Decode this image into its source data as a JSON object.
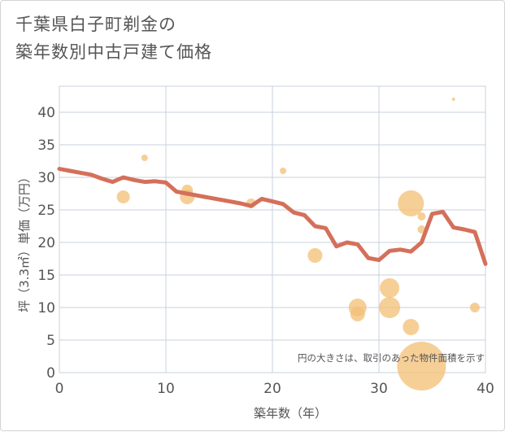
{
  "title": {
    "line1": "千葉県白子町剃金の",
    "line2": "築年数別中古戸建て価格"
  },
  "colors": {
    "bubble": "#f3bf74",
    "line": "#d4705a",
    "grid": "#c9d1dc",
    "text": "#555555"
  },
  "chart_data": {
    "type": "scatter",
    "xlabel": "築年数（年）",
    "ylabel": "坪（3.3㎡）単価（万円）",
    "xlim": [
      0,
      40
    ],
    "ylim": [
      0,
      44
    ],
    "xticks": [
      0,
      10,
      20,
      30,
      40
    ],
    "yticks": [
      0,
      5,
      10,
      15,
      20,
      25,
      30,
      35,
      40
    ],
    "note": "円の大きさは、取引のあった物件面積を示す",
    "bubbles": [
      {
        "x": 6,
        "y": 27,
        "size": 8
      },
      {
        "x": 8,
        "y": 33,
        "size": 4
      },
      {
        "x": 12,
        "y": 27,
        "size": 9
      },
      {
        "x": 12,
        "y": 28,
        "size": 7
      },
      {
        "x": 18,
        "y": 26,
        "size": 6
      },
      {
        "x": 21,
        "y": 31,
        "size": 4
      },
      {
        "x": 24,
        "y": 18,
        "size": 9
      },
      {
        "x": 28,
        "y": 10,
        "size": 11
      },
      {
        "x": 28,
        "y": 9,
        "size": 9
      },
      {
        "x": 31,
        "y": 13,
        "size": 12
      },
      {
        "x": 31,
        "y": 10,
        "size": 13
      },
      {
        "x": 33,
        "y": 26,
        "size": 16
      },
      {
        "x": 33,
        "y": 7,
        "size": 10
      },
      {
        "x": 34,
        "y": 24,
        "size": 5
      },
      {
        "x": 34,
        "y": 22,
        "size": 5
      },
      {
        "x": 34,
        "y": 1,
        "size": 30
      },
      {
        "x": 37,
        "y": 42,
        "size": 2
      },
      {
        "x": 39,
        "y": 10,
        "size": 6
      }
    ],
    "trend_line": {
      "x": [
        0,
        1,
        2,
        3,
        4,
        5,
        6,
        7,
        8,
        9,
        10,
        11,
        12,
        13,
        14,
        15,
        16,
        17,
        18,
        19,
        20,
        21,
        22,
        23,
        24,
        25,
        26,
        27,
        28,
        29,
        30,
        31,
        32,
        33,
        34,
        35,
        36,
        37,
        38,
        39,
        40
      ],
      "y": [
        31.3,
        31.0,
        30.7,
        30.4,
        29.8,
        29.3,
        30.0,
        29.6,
        29.3,
        29.4,
        29.2,
        27.8,
        27.5,
        27.2,
        26.9,
        26.6,
        26.3,
        26.0,
        25.6,
        26.7,
        26.3,
        25.9,
        24.6,
        24.2,
        22.5,
        22.2,
        19.4,
        20.0,
        19.7,
        17.6,
        17.3,
        18.7,
        18.9,
        18.6,
        20.0,
        24.4,
        24.7,
        22.3,
        22.0,
        21.6,
        16.7
      ]
    }
  }
}
